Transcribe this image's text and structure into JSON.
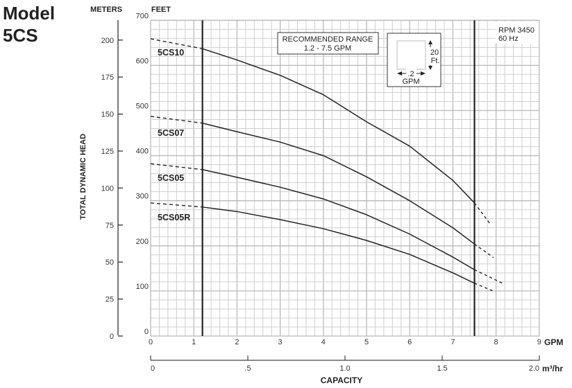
{
  "title": {
    "line1": "Model",
    "line2": "5CS"
  },
  "chart_data": {
    "type": "line",
    "title": "Model 5CS",
    "ylabel": "TOTAL DYNAMIC HEAD",
    "xlabel": "CAPACITY",
    "y_units_left": "METERS",
    "y_units_right": "FEET",
    "x_unit_primary": "GPM",
    "x_unit_secondary": "m³/hr",
    "xlim": [
      0,
      9
    ],
    "ylim_feet": [
      0,
      700
    ],
    "ylim_meters": [
      0,
      213.36
    ],
    "grid": true,
    "x_ticks": [
      "0",
      "1",
      "2",
      "3",
      "4",
      "5",
      "6",
      "7",
      "8",
      "9"
    ],
    "feet_ticks": [
      "0",
      "100",
      "200",
      "300",
      "400",
      "500",
      "600",
      "700"
    ],
    "meter_ticks": [
      "0",
      "25",
      "50",
      "75",
      "100",
      "125",
      "150",
      "175",
      "200"
    ],
    "m3hr_ticks": [
      {
        "v": 0,
        "label": "0"
      },
      {
        "v": 0.5,
        "label": ".5"
      },
      {
        "v": 1.0,
        "label": "1.0"
      },
      {
        "v": 1.5,
        "label": "1.5"
      },
      {
        "v": 2.0,
        "label": "2.0"
      }
    ],
    "recommended_range": {
      "min": 1.2,
      "max": 7.5,
      "label": "RECOMMENDED RANGE",
      "sublabel": "1.2 - 7.5 GPM"
    },
    "scale_legend": {
      "height": "20",
      "height_unit": "Ft.",
      "width": ".2",
      "width_unit": "GPM"
    },
    "annotation": {
      "rpm": "RPM 3450",
      "hz": "60 Hz"
    },
    "series": [
      {
        "name": "5CS10",
        "x": [
          0,
          1.2,
          2,
          3,
          4,
          4.6,
          5,
          6,
          7,
          7.5,
          7.86
        ],
        "y": [
          659,
          637,
          612,
          578,
          535,
          499,
          475,
          421,
          345,
          295,
          249
        ]
      },
      {
        "name": "5CS07",
        "x": [
          0,
          1.2,
          2,
          3,
          4,
          5,
          6,
          7,
          7.5,
          7.94
        ],
        "y": [
          487,
          472,
          453,
          430,
          400,
          353,
          300,
          240,
          204,
          174
        ]
      },
      {
        "name": "5CS05",
        "x": [
          0,
          1.2,
          2,
          3,
          4,
          5,
          6,
          7,
          7.5,
          8.15
        ],
        "y": [
          382,
          369,
          352,
          330,
          304,
          269,
          226,
          175,
          147,
          117
        ]
      },
      {
        "name": "5CS05R",
        "x": [
          0,
          1.2,
          2,
          3,
          4,
          5,
          6,
          7,
          7.5,
          7.93
        ],
        "y": [
          295,
          286,
          276,
          258,
          238,
          212,
          181,
          140,
          117,
          100
        ]
      }
    ]
  }
}
